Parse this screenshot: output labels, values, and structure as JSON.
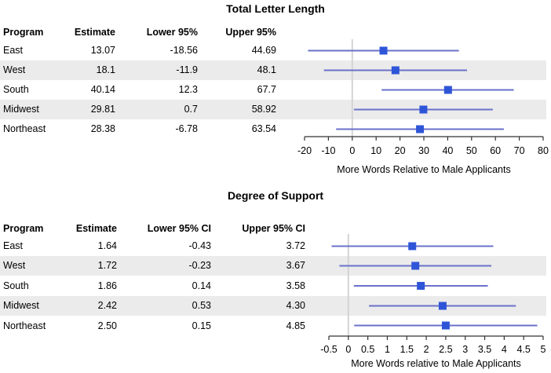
{
  "colors": {
    "stripe": "#ebebeb",
    "ci_line": "#6a72ca",
    "marker": "#2e55d8",
    "reference_line": "#d4d4d4",
    "axis": "#333333",
    "text": "#000000"
  },
  "sections": [
    {
      "title": "Total Letter Length",
      "table": {
        "headers": {
          "program": "Program",
          "estimate": "Estimate",
          "lower": "Lower 95%",
          "upper": "Upper 95%"
        },
        "rows": [
          {
            "program": "East",
            "estimate": "13.07",
            "lower": "-18.56",
            "upper": "44.69"
          },
          {
            "program": "West",
            "estimate": "18.1",
            "lower": "-11.9",
            "upper": "48.1"
          },
          {
            "program": "South",
            "estimate": "40.14",
            "lower": "12.3",
            "upper": "67.7"
          },
          {
            "program": "Midwest",
            "estimate": "29.81",
            "lower": "0.7",
            "upper": "58.92"
          },
          {
            "program": "Northeast",
            "estimate": "28.38",
            "lower": "-6.78",
            "upper": "63.54"
          }
        ]
      },
      "axis_label": "More Words Relative to Male Applicants"
    },
    {
      "title": "Degree of Support",
      "table": {
        "headers": {
          "program": "Program",
          "estimate": "Estimate",
          "lower": "Lower 95% CI",
          "upper": "Upper 95% CI"
        },
        "rows": [
          {
            "program": "East",
            "estimate": "1.64",
            "lower": "-0.43",
            "upper": "3.72"
          },
          {
            "program": "West",
            "estimate": "1.72",
            "lower": "-0.23",
            "upper": "3.67"
          },
          {
            "program": "South",
            "estimate": "1.86",
            "lower": "0.14",
            "upper": "3.58"
          },
          {
            "program": "Midwest",
            "estimate": "2.42",
            "lower": "0.53",
            "upper": "4.30"
          },
          {
            "program": "Northeast",
            "estimate": "2.50",
            "lower": "0.15",
            "upper": "4.85"
          }
        ]
      },
      "axis_label": "More Words relative to Male Applicants"
    }
  ],
  "chart_data": [
    {
      "type": "scatter",
      "subtype": "forest-plot-horizontal-ci",
      "title": "Total Letter Length",
      "categories": [
        "East",
        "West",
        "South",
        "Midwest",
        "Northeast"
      ],
      "estimates": [
        13.07,
        18.1,
        40.14,
        29.81,
        28.38
      ],
      "lower_95": [
        -18.56,
        -11.9,
        12.3,
        0.7,
        -6.78
      ],
      "upper_95": [
        44.69,
        48.1,
        67.7,
        58.92,
        63.54
      ],
      "xlabel": "More Words Relative to Male Applicants",
      "xlim": [
        -20,
        80
      ],
      "xticks": [
        -20,
        -10,
        0,
        10,
        20,
        30,
        40,
        50,
        60,
        70,
        80
      ],
      "xtick_labels": [
        "-20",
        "-10",
        "0",
        "10",
        "20",
        "30",
        "40",
        "50",
        "60",
        "70",
        "80"
      ],
      "reference_line_x": 0,
      "grid": false,
      "legend": false
    },
    {
      "type": "scatter",
      "subtype": "forest-plot-horizontal-ci",
      "title": "Degree of Support",
      "categories": [
        "East",
        "West",
        "South",
        "Midwest",
        "Northeast"
      ],
      "estimates": [
        1.64,
        1.72,
        1.86,
        2.42,
        2.5
      ],
      "lower_95": [
        -0.43,
        -0.23,
        0.14,
        0.53,
        0.15
      ],
      "upper_95": [
        3.72,
        3.67,
        3.58,
        4.3,
        4.85
      ],
      "xlabel": "More Words relative to Male Applicants",
      "xlim": [
        -0.5,
        5
      ],
      "xticks": [
        -0.5,
        0,
        0.5,
        1,
        1.5,
        2,
        2.5,
        3,
        3.5,
        4,
        4.5,
        5
      ],
      "xtick_labels": [
        "-0.5",
        "0",
        "0.5",
        "1",
        "1.5",
        "2",
        "2.5",
        "3",
        "3.5",
        "4",
        "4.5",
        "5"
      ],
      "reference_line_x": 0,
      "grid": false,
      "legend": false
    }
  ]
}
